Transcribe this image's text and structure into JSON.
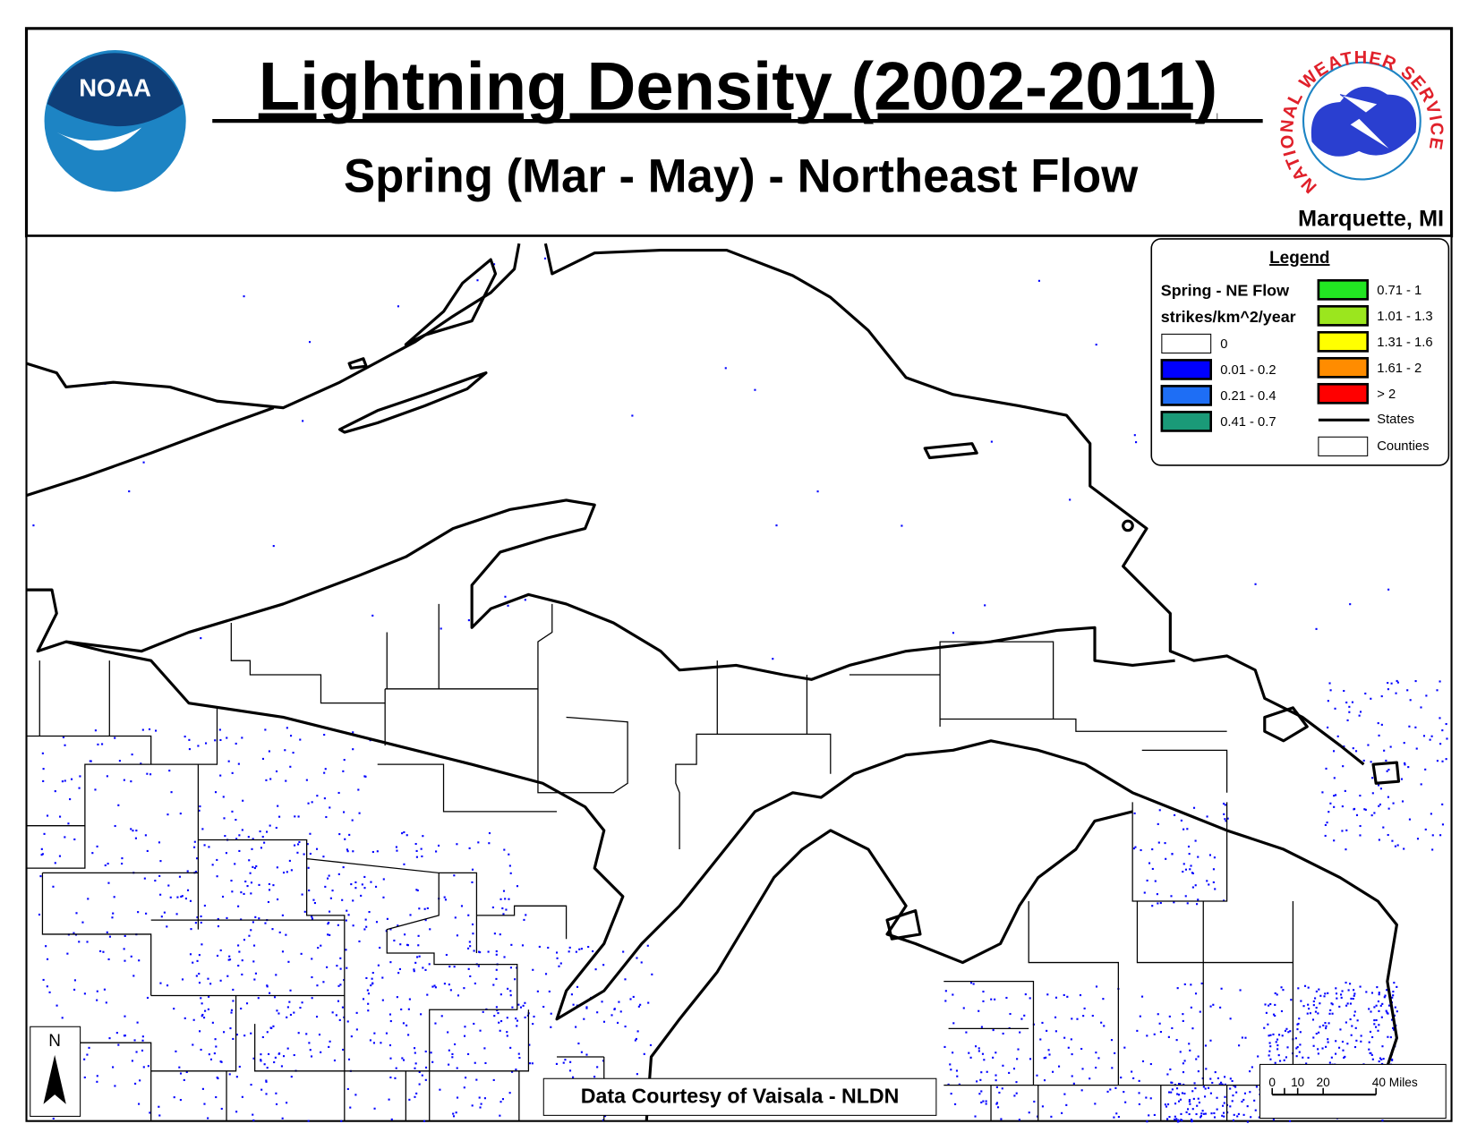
{
  "header": {
    "title": "Lightning Density (2002-2011)",
    "subtitle": "Spring (Mar - May) - Northeast Flow",
    "location": "Marquette, MI",
    "noaa_logo_text": "NOAA",
    "nws_logo_text": "NATIONAL WEATHER SERVICE"
  },
  "legend": {
    "title": "Legend",
    "layer": "Spring - NE Flow",
    "units": "strikes/km^2/year",
    "classes": [
      {
        "label": "0",
        "color": "#ffffff"
      },
      {
        "label": "0.01 - 0.2",
        "color": "#0000ff"
      },
      {
        "label": "0.21 - 0.4",
        "color": "#1e6ef5"
      },
      {
        "label": "0.41 - 0.7",
        "color": "#1a9a78"
      },
      {
        "label": "0.71 - 1",
        "color": "#22e622"
      },
      {
        "label": "1.01 - 1.3",
        "color": "#9be61e"
      },
      {
        "label": "1.31 - 1.6",
        "color": "#ffff00"
      },
      {
        "label": "1.61 - 2",
        "color": "#ff8c00"
      },
      {
        "label": "> 2",
        "color": "#ff0000"
      }
    ],
    "states": "States",
    "counties": "Counties"
  },
  "scale_bar": {
    "labels": [
      "0",
      "10",
      "20",
      "40 Miles"
    ]
  },
  "north_arrow": "N",
  "credit": "Data Courtesy of Vaisala - NLDN"
}
